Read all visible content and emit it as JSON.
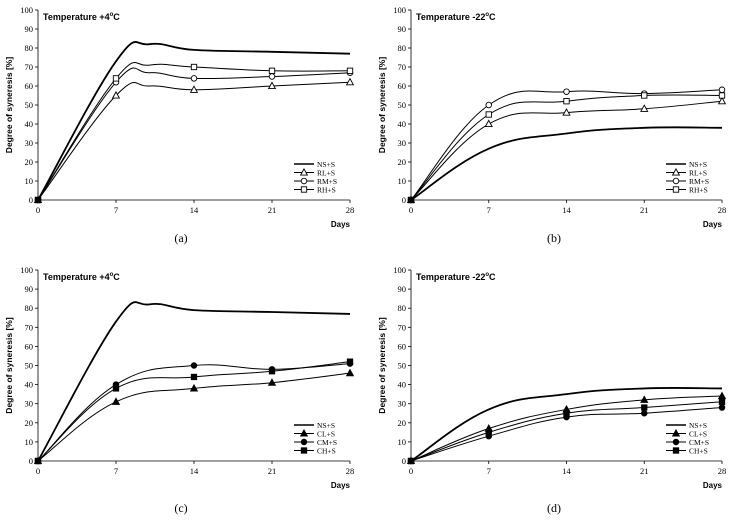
{
  "chart_data": [
    {
      "type": "line",
      "panel_label": "(a)",
      "annotation": "Temperature +4°C",
      "ylabel": "Degree of syneresis [%]",
      "xlabel": "Days",
      "x": [
        0,
        7,
        14,
        21,
        28
      ],
      "x_ticks": [
        "0",
        "7",
        "14",
        "21",
        "28"
      ],
      "ylim": [
        0,
        100
      ],
      "y_ticks": [
        "0",
        "10",
        "20",
        "30",
        "40",
        "50",
        "60",
        "70",
        "80",
        "90",
        "100"
      ],
      "legend_position": "bottom-right",
      "series": [
        {
          "name": "NS+S",
          "marker": "none",
          "values": [
            0,
            73,
            79,
            78,
            77
          ],
          "peak": {
            "x": 10,
            "y": 82
          }
        },
        {
          "name": "RL+S",
          "marker": "triangle",
          "values": [
            0,
            55,
            58,
            60,
            62
          ],
          "peak": {
            "x": 10,
            "y": 60
          }
        },
        {
          "name": "RM+S",
          "marker": "circle-open",
          "values": [
            0,
            62,
            64,
            65,
            67
          ],
          "peak": {
            "x": 10,
            "y": 67
          }
        },
        {
          "name": "RH+S",
          "marker": "square-open",
          "values": [
            0,
            64,
            70,
            68,
            68
          ],
          "peak": {
            "x": 10,
            "y": 71
          }
        }
      ]
    },
    {
      "type": "line",
      "panel_label": "(b)",
      "annotation": "Temperature -22°C",
      "ylabel": "Degree of syneresis [%]",
      "xlabel": "Days",
      "x": [
        0,
        7,
        14,
        21,
        28
      ],
      "x_ticks": [
        "0",
        "7",
        "14",
        "21",
        "28"
      ],
      "ylim": [
        0,
        100
      ],
      "y_ticks": [
        "0",
        "10",
        "20",
        "30",
        "40",
        "50",
        "60",
        "70",
        "80",
        "90",
        "100"
      ],
      "legend_position": "bottom-right",
      "series": [
        {
          "name": "NS+S",
          "marker": "none",
          "values": [
            0,
            27,
            35,
            38,
            38
          ]
        },
        {
          "name": "RL+S",
          "marker": "triangle",
          "values": [
            0,
            40,
            46,
            48,
            52
          ]
        },
        {
          "name": "RM+S",
          "marker": "circle-open",
          "values": [
            0,
            50,
            57,
            56,
            58
          ]
        },
        {
          "name": "RH+S",
          "marker": "square-open",
          "values": [
            0,
            45,
            52,
            55,
            55
          ]
        }
      ]
    },
    {
      "type": "line",
      "panel_label": "(c)",
      "annotation": "Temperature +4°C",
      "ylabel": "Degree of syneresis [%]",
      "xlabel": "Days",
      "x": [
        0,
        7,
        14,
        21,
        28
      ],
      "x_ticks": [
        "0",
        "7",
        "14",
        "21",
        "28"
      ],
      "ylim": [
        0,
        100
      ],
      "y_ticks": [
        "0",
        "10",
        "20",
        "30",
        "40",
        "50",
        "60",
        "70",
        "80",
        "90",
        "100"
      ],
      "legend_position": "bottom-right",
      "series": [
        {
          "name": "NS+S",
          "marker": "none",
          "values": [
            0,
            73,
            79,
            78,
            77
          ],
          "peak": {
            "x": 10,
            "y": 82
          }
        },
        {
          "name": "CL+S",
          "marker": "triangle-filled",
          "values": [
            0,
            31,
            38,
            41,
            46
          ]
        },
        {
          "name": "CM+S",
          "marker": "circle-filled",
          "values": [
            0,
            40,
            50,
            48,
            51
          ]
        },
        {
          "name": "CH+S",
          "marker": "square-filled",
          "values": [
            0,
            38,
            44,
            47,
            52
          ]
        }
      ]
    },
    {
      "type": "line",
      "panel_label": "(d)",
      "annotation": "Temperature -22°C",
      "ylabel": "Degree of syneresis [%]",
      "xlabel": "Days",
      "x": [
        0,
        7,
        14,
        21,
        28
      ],
      "x_ticks": [
        "0",
        "7",
        "14",
        "21",
        "28"
      ],
      "ylim": [
        0,
        100
      ],
      "y_ticks": [
        "0",
        "10",
        "20",
        "30",
        "40",
        "50",
        "60",
        "70",
        "80",
        "90",
        "100"
      ],
      "legend_position": "bottom-right",
      "series": [
        {
          "name": "NS+S",
          "marker": "none",
          "values": [
            0,
            27,
            35,
            38,
            38
          ]
        },
        {
          "name": "CL+S",
          "marker": "triangle-filled",
          "values": [
            0,
            17,
            27,
            32,
            34
          ]
        },
        {
          "name": "CM+S",
          "marker": "circle-filled",
          "values": [
            0,
            13,
            23,
            25,
            28
          ]
        },
        {
          "name": "CH+S",
          "marker": "square-filled",
          "values": [
            0,
            15,
            25,
            28,
            31
          ]
        }
      ]
    }
  ]
}
